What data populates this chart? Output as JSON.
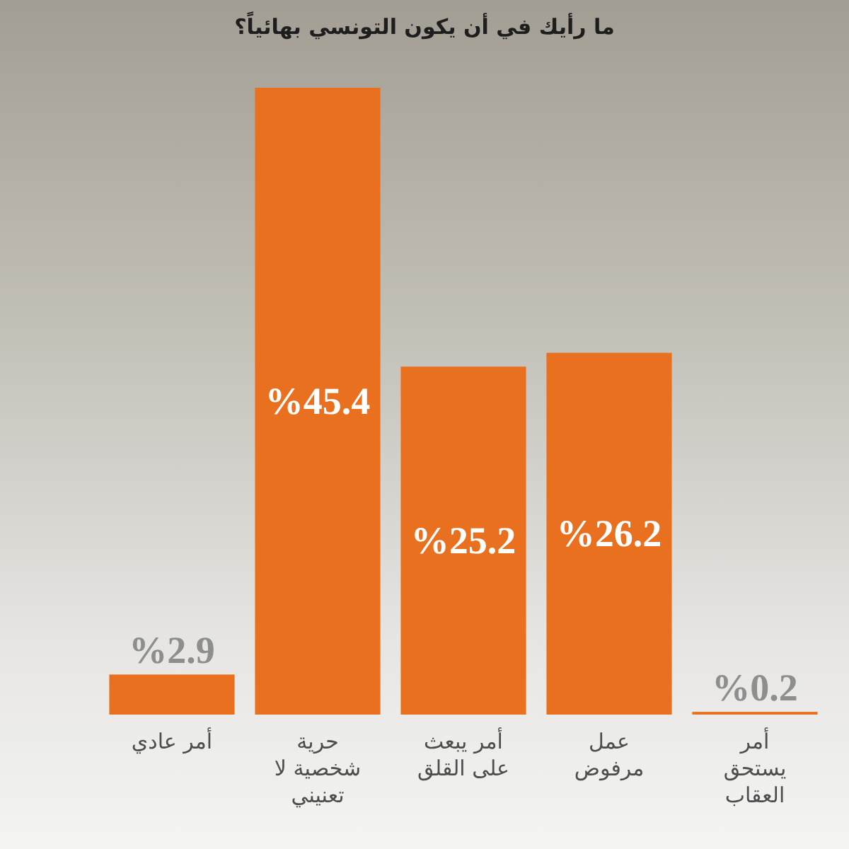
{
  "chart_data": {
    "type": "bar",
    "title": "ما رأيك في أن يكون التونسي بهائياً؟",
    "categories": [
      "أمر عادي",
      "حرية شخصية لا تعنيني",
      "أمر يبعث على القلق",
      "عمل مرفوض",
      "أمر يستحق العقاب"
    ],
    "values": [
      2.9,
      45.4,
      25.2,
      26.2,
      0.2
    ],
    "value_labels": [
      "%2.9",
      "%45.4",
      "%25.2",
      "%26.2",
      "%0.2"
    ],
    "color": "#e8701f"
  }
}
